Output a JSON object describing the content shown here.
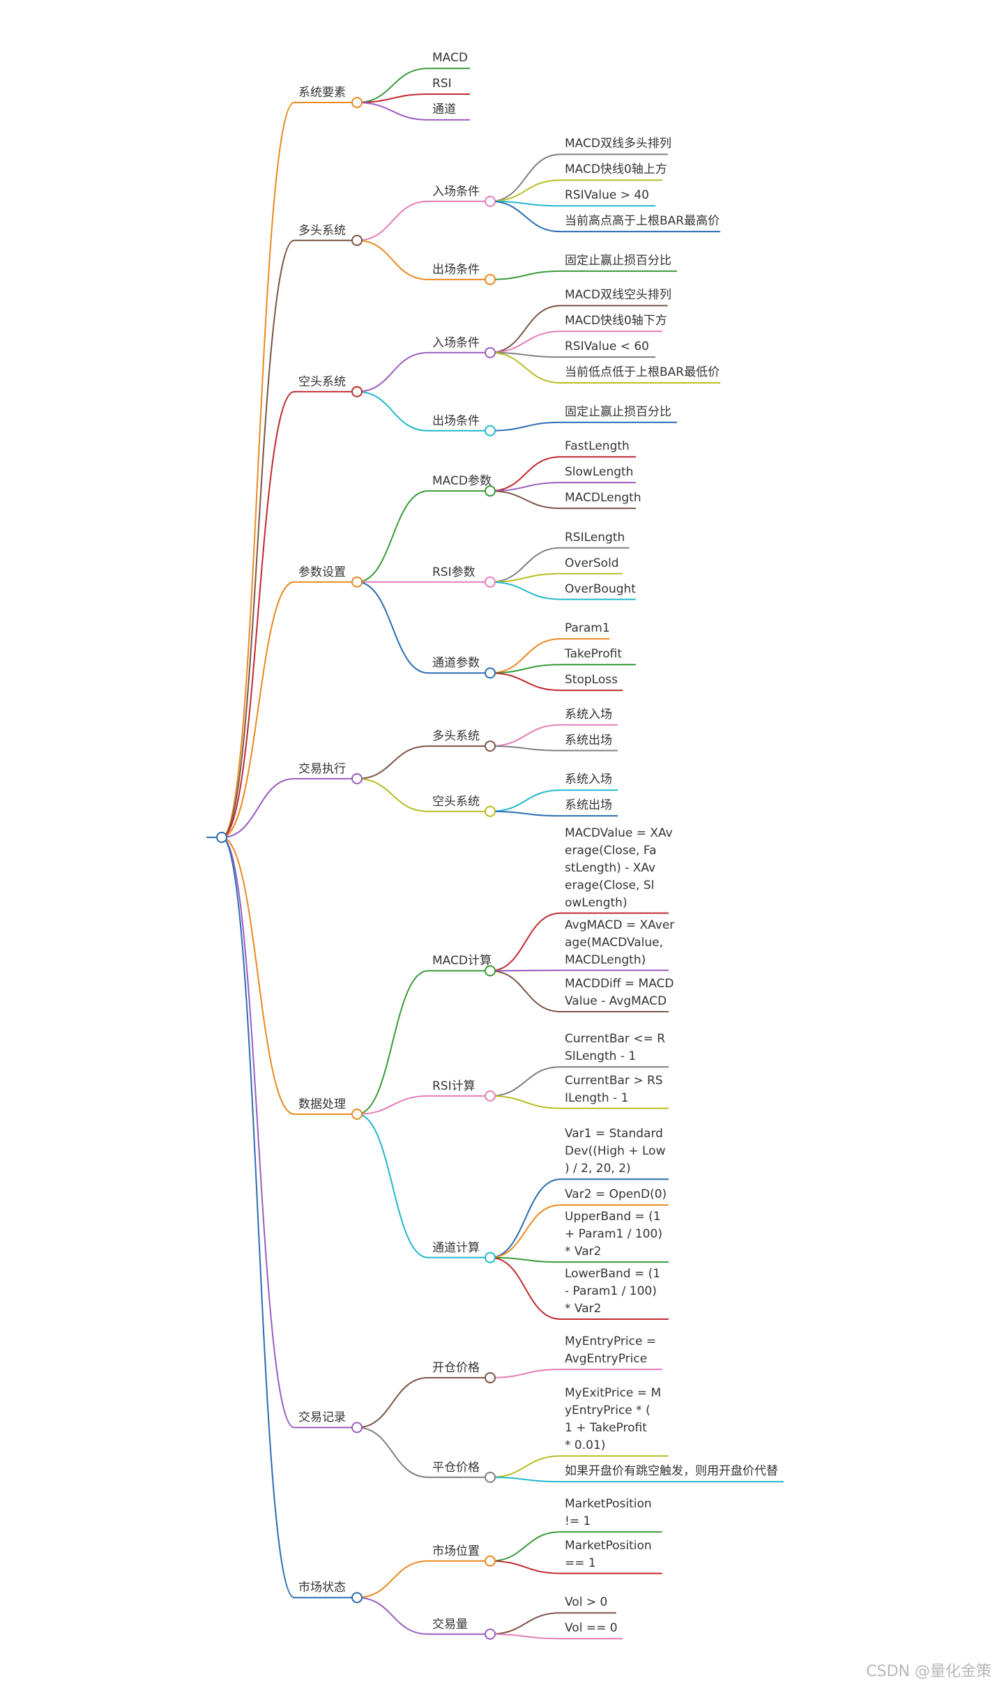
{
  "watermark": "CSDN @量化金策",
  "colors": {
    "red": "#c0282e",
    "green": "#3a9a3a",
    "purple": "#9a5cc0",
    "orange": "#e8891e",
    "brown": "#7a5444",
    "pink": "#e47cb8",
    "gray": "#7f7f7f",
    "olive": "#b8bd20",
    "cyan": "#1fb8cc",
    "blue": "#2a6cb0",
    "root": "#2a6cb0"
  },
  "tree": {
    "label": "",
    "children": [
      {
        "label": "系统要素",
        "color": "orange",
        "children": [
          {
            "label": "MACD",
            "color": "green"
          },
          {
            "label": "RSI",
            "color": "red"
          },
          {
            "label": "通道",
            "color": "purple"
          }
        ]
      },
      {
        "label": "多头系统",
        "color": "brown",
        "children": [
          {
            "label": "入场条件",
            "color": "pink",
            "children": [
              {
                "label": "MACD双线多头排列",
                "color": "gray"
              },
              {
                "label": "MACD快线0轴上方",
                "color": "olive"
              },
              {
                "label": "RSIValue > 40",
                "color": "cyan"
              },
              {
                "label": "当前高点高于上根BAR最高价",
                "color": "blue"
              }
            ]
          },
          {
            "label": "出场条件",
            "color": "orange",
            "children": [
              {
                "label": "固定止赢止损百分比",
                "color": "green"
              }
            ]
          }
        ]
      },
      {
        "label": "空头系统",
        "color": "red",
        "children": [
          {
            "label": "入场条件",
            "color": "purple",
            "children": [
              {
                "label": "MACD双线空头排列",
                "color": "brown"
              },
              {
                "label": "MACD快线0轴下方",
                "color": "pink"
              },
              {
                "label": "RSIValue < 60",
                "color": "gray"
              },
              {
                "label": "当前低点低于上根BAR最低价",
                "color": "olive"
              }
            ]
          },
          {
            "label": "出场条件",
            "color": "cyan",
            "children": [
              {
                "label": "固定止赢止损百分比",
                "color": "blue"
              }
            ]
          }
        ]
      },
      {
        "label": "参数设置",
        "color": "orange",
        "children": [
          {
            "label": "MACD参数",
            "color": "green",
            "children": [
              {
                "label": "FastLength",
                "color": "red"
              },
              {
                "label": "SlowLength",
                "color": "purple"
              },
              {
                "label": "MACDLength",
                "color": "brown"
              }
            ]
          },
          {
            "label": "RSI参数",
            "color": "pink",
            "children": [
              {
                "label": "RSILength",
                "color": "gray"
              },
              {
                "label": "OverSold",
                "color": "olive"
              },
              {
                "label": "OverBought",
                "color": "cyan"
              }
            ]
          },
          {
            "label": "通道参数",
            "color": "blue",
            "children": [
              {
                "label": "Param1",
                "color": "orange"
              },
              {
                "label": "TakeProfit",
                "color": "green"
              },
              {
                "label": "StopLoss",
                "color": "red"
              }
            ]
          }
        ]
      },
      {
        "label": "交易执行",
        "color": "purple",
        "children": [
          {
            "label": "多头系统",
            "color": "brown",
            "children": [
              {
                "label": "系统入场",
                "color": "pink"
              },
              {
                "label": "系统出场",
                "color": "gray"
              }
            ]
          },
          {
            "label": "空头系统",
            "color": "olive",
            "children": [
              {
                "label": "系统入场",
                "color": "cyan"
              },
              {
                "label": "系统出场",
                "color": "blue"
              }
            ]
          }
        ]
      },
      {
        "label": "数据处理",
        "color": "orange",
        "children": [
          {
            "label": "MACD计算",
            "color": "green",
            "children": [
              {
                "label": "MACDValue = XAv\nerage(Close, Fa\nstLength) - XAv\nerage(Close, Sl\nowLength)",
                "color": "red"
              },
              {
                "label": "AvgMACD = XAver\nage(MACDValue,\nMACDLength)",
                "color": "purple"
              },
              {
                "label": "MACDDiff = MACD\nValue - AvgMACD",
                "color": "brown"
              }
            ]
          },
          {
            "label": "RSI计算",
            "color": "pink",
            "children": [
              {
                "label": "CurrentBar <= R\nSILength - 1",
                "color": "gray"
              },
              {
                "label": "CurrentBar > RS\nILength - 1",
                "color": "olive"
              }
            ]
          },
          {
            "label": "通道计算",
            "color": "cyan",
            "children": [
              {
                "label": "Var1 = Standard\nDev((High + Low\n) / 2, 20, 2)",
                "color": "blue"
              },
              {
                "label": "Var2 = OpenD(0)",
                "color": "orange"
              },
              {
                "label": "UpperBand = (1\n+ Param1 / 100)\n* Var2",
                "color": "green"
              },
              {
                "label": "LowerBand = (1\n- Param1 / 100)\n* Var2",
                "color": "red"
              }
            ]
          }
        ]
      },
      {
        "label": "交易记录",
        "color": "purple",
        "children": [
          {
            "label": "开仓价格",
            "color": "brown",
            "children": [
              {
                "label": "MyEntryPrice =\nAvgEntryPrice",
                "color": "pink"
              }
            ]
          },
          {
            "label": "平仓价格",
            "color": "gray",
            "children": [
              {
                "label": "MyExitPrice = M\nyEntryPrice * (\n1 + TakeProfit\n* 0.01)",
                "color": "olive"
              },
              {
                "label": "如果开盘价有跳空触发，则用开盘价代替",
                "color": "cyan"
              }
            ]
          }
        ]
      },
      {
        "label": "市场状态",
        "color": "blue",
        "children": [
          {
            "label": "市场位置",
            "color": "orange",
            "children": [
              {
                "label": "MarketPosition\n!= 1",
                "color": "green"
              },
              {
                "label": "MarketPosition\n== 1",
                "color": "red"
              }
            ]
          },
          {
            "label": "交易量",
            "color": "purple",
            "children": [
              {
                "label": "Vol > 0",
                "color": "brown"
              },
              {
                "label": "Vol == 0",
                "color": "pink"
              }
            ]
          }
        ]
      }
    ]
  }
}
